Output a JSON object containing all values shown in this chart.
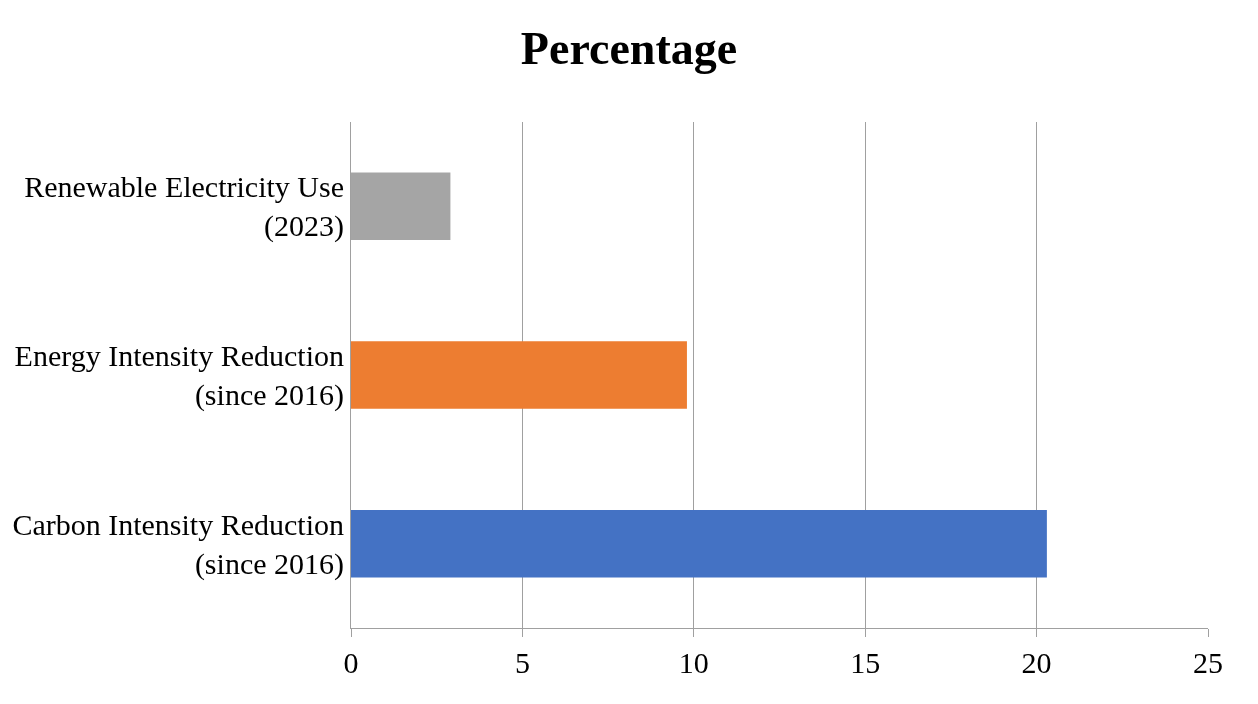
{
  "chart_data": {
    "type": "bar",
    "orientation": "horizontal",
    "title": "Percentage",
    "categories": [
      "Renewable Electricity Use (2023)",
      "Energy Intensity Reduction (since 2016)",
      "Carbon Intensity Reduction (since 2016)"
    ],
    "values": [
      2.9,
      9.8,
      20.3
    ],
    "colors": [
      "#a5a5a5",
      "#ed7d31",
      "#4472c4"
    ],
    "xlim": [
      0,
      25
    ],
    "xticks": [
      0,
      5,
      10,
      15,
      20,
      25
    ],
    "grid": "x"
  }
}
